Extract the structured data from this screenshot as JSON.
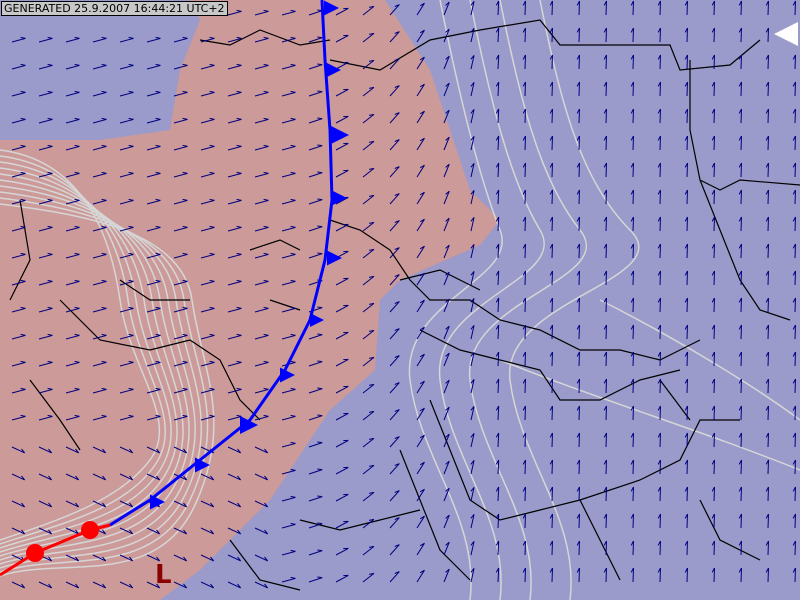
{
  "header": {
    "generated_label": "GENERATED 25.9.2007 16:44:21 UTC+2"
  },
  "map": {
    "pressure_center_label": "L",
    "fronts": [
      "cold-front",
      "warm-front"
    ],
    "colors": {
      "background_air": "#9a9acb",
      "warm_air": "#cc9a99",
      "isolines": "#d6d6d6",
      "wind_arrows": "#000080",
      "cold_front": "#0000ff",
      "warm_front": "#ff0000",
      "borders": "#000000",
      "low_marker": "#8b0000"
    }
  },
  "controls": {
    "nav_icon": "triangle-left-icon"
  }
}
